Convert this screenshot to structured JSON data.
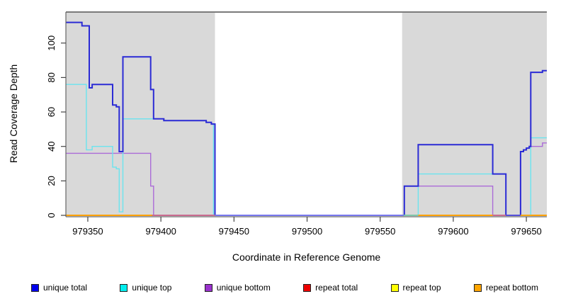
{
  "figure": {
    "kind": "coverage-plot"
  },
  "chart_data": {
    "type": "line",
    "title": "",
    "xlabel": "Coordinate in Reference Genome",
    "ylabel": "Read Coverage Depth",
    "xlim": [
      979335,
      979664
    ],
    "ylim": [
      0,
      118
    ],
    "x_ticks": [
      979350,
      979400,
      979450,
      979500,
      979550,
      979600,
      979650
    ],
    "y_ticks": [
      0,
      20,
      40,
      60,
      80,
      100
    ],
    "grid": false,
    "legend_position": "bottom",
    "shade_color": "#D9D9D9",
    "shaded_regions": [
      {
        "from": 979335,
        "to": 979437
      },
      {
        "from": 979565,
        "to": 979664
      }
    ],
    "series": [
      {
        "name": "unique total",
        "color": "#2B2BD5",
        "width": 2,
        "steps": [
          [
            979335,
            112
          ],
          [
            979346,
            110
          ],
          [
            979351,
            74
          ],
          [
            979353,
            76
          ],
          [
            979367,
            64
          ],
          [
            979369.5,
            63
          ],
          [
            979371.5,
            37
          ],
          [
            979374,
            92
          ],
          [
            979393,
            73
          ],
          [
            979395,
            56
          ],
          [
            979402,
            55
          ],
          [
            979431,
            54
          ],
          [
            979434.5,
            53
          ],
          [
            979437,
            0
          ],
          [
            979566.5,
            17
          ],
          [
            979576,
            41
          ],
          [
            979627,
            24
          ],
          [
            979636,
            0
          ],
          [
            979646,
            37
          ],
          [
            979648,
            38
          ],
          [
            979650,
            39
          ],
          [
            979652,
            40
          ],
          [
            979653,
            83
          ],
          [
            979661,
            84
          ],
          [
            979664,
            84
          ]
        ]
      },
      {
        "name": "unique top",
        "color": "#6BE4EE",
        "width": 1.4,
        "steps": [
          [
            979335,
            76
          ],
          [
            979349,
            38
          ],
          [
            979353,
            40
          ],
          [
            979367,
            28
          ],
          [
            979369.5,
            27
          ],
          [
            979371.5,
            2
          ],
          [
            979374,
            56
          ],
          [
            979402,
            55
          ],
          [
            979431,
            54
          ],
          [
            979434.5,
            53
          ],
          [
            979436,
            0
          ],
          [
            979576,
            24
          ],
          [
            979636,
            0
          ],
          [
            979653,
            45
          ],
          [
            979664,
            45
          ]
        ]
      },
      {
        "name": "unique bottom",
        "color": "#AB6BD8",
        "width": 1.4,
        "steps": [
          [
            979335,
            36
          ],
          [
            979393,
            17
          ],
          [
            979395,
            0
          ],
          [
            979566.5,
            17
          ],
          [
            979627,
            0
          ],
          [
            979646,
            37
          ],
          [
            979648,
            38
          ],
          [
            979650,
            39
          ],
          [
            979652,
            40
          ],
          [
            979661,
            42
          ],
          [
            979664,
            42
          ]
        ]
      },
      {
        "name": "repeat total",
        "color": "#D84040",
        "width": 1.4,
        "segments": [
          {
            "from": 979335,
            "to": 979437,
            "value": 0
          },
          {
            "from": 979565,
            "to": 979664,
            "value": 0
          }
        ]
      },
      {
        "name": "repeat top",
        "color": "#F2F23C",
        "width": 1.4,
        "segments": [
          {
            "from": 979335,
            "to": 979437,
            "value": 0
          },
          {
            "from": 979565,
            "to": 979664,
            "value": 0
          }
        ]
      },
      {
        "name": "repeat bottom",
        "color": "#FFA500",
        "width": 1.8,
        "segments": [
          {
            "from": 979335,
            "to": 979437,
            "value": 0
          },
          {
            "from": 979565,
            "to": 979664,
            "value": 0
          }
        ]
      }
    ],
    "zero_line_segments": [
      {
        "from": 979335,
        "to": 979394,
        "color": "#FFA500"
      },
      {
        "from": 979394,
        "to": 979437,
        "color": "#C9688F"
      },
      {
        "from": 979437,
        "to": 979566,
        "color": "#8282F0"
      },
      {
        "from": 979566,
        "to": 979576,
        "color": "#79C8AC"
      },
      {
        "from": 979576,
        "to": 979627,
        "color": "#FFA500"
      },
      {
        "from": 979627,
        "to": 979636,
        "color": "#C9688F"
      },
      {
        "from": 979636,
        "to": 979646,
        "color": "#5B55D8"
      },
      {
        "from": 979646,
        "to": 979664,
        "color": "#FFA500"
      }
    ]
  },
  "legend": {
    "items": [
      {
        "label": "unique total",
        "color": "#0000EE"
      },
      {
        "label": "unique top",
        "color": "#00EEEE"
      },
      {
        "label": "unique bottom",
        "color": "#9A32CD"
      },
      {
        "label": "repeat total",
        "color": "#EE0000"
      },
      {
        "label": "repeat top",
        "color": "#FFFF00"
      },
      {
        "label": "repeat bottom",
        "color": "#FFA500"
      }
    ]
  }
}
